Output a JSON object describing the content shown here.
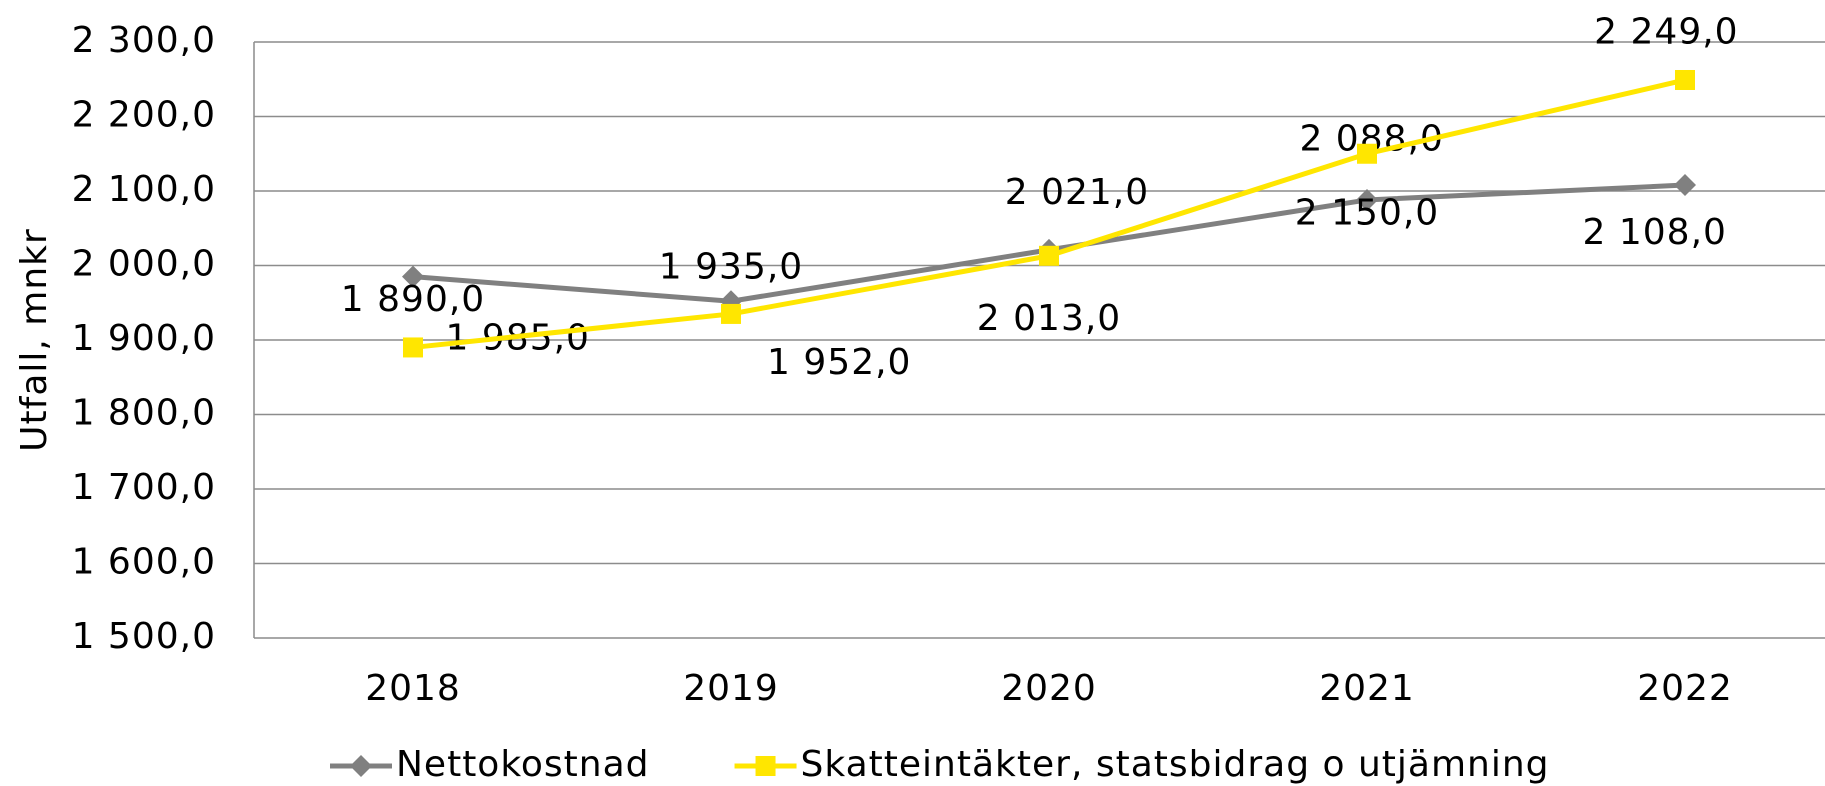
{
  "chart_data": {
    "type": "line",
    "y_label": "Utfall, mnkr",
    "categories": [
      "2018",
      "2019",
      "2020",
      "2021",
      "2022"
    ],
    "series": [
      {
        "name": "Nettokostnad",
        "color": "#808080",
        "marker": "diamond",
        "values": [
          1985,
          1952,
          2021,
          2088,
          2108
        ],
        "value_labels": [
          "1 985,0",
          "1 952,0",
          "2 021,0",
          "2 088,0",
          "2 108,0"
        ]
      },
      {
        "name": "Skatteintäkter, statsbidrag o utjämning",
        "color": "#ffe600",
        "marker": "square",
        "values": [
          1890,
          1935,
          2013,
          2150,
          2249
        ],
        "value_labels": [
          "1 890,0",
          "1 935,0",
          "2 013,0",
          "2 150,0",
          "2 249,0"
        ]
      }
    ],
    "ylim": [
      1500,
      2300
    ],
    "yticks": [
      {
        "value": 1500,
        "label": "1 500,0"
      },
      {
        "value": 1600,
        "label": "1 600,0"
      },
      {
        "value": 1700,
        "label": "1 700,0"
      },
      {
        "value": 1800,
        "label": "1 800,0"
      },
      {
        "value": 1900,
        "label": "1 900,0"
      },
      {
        "value": 2000,
        "label": "2 000,0"
      },
      {
        "value": 2100,
        "label": "2 100,0"
      },
      {
        "value": 2200,
        "label": "2 200,0"
      },
      {
        "value": 2300,
        "label": "2 300,0"
      }
    ],
    "grid": true,
    "legend": "bottom"
  }
}
